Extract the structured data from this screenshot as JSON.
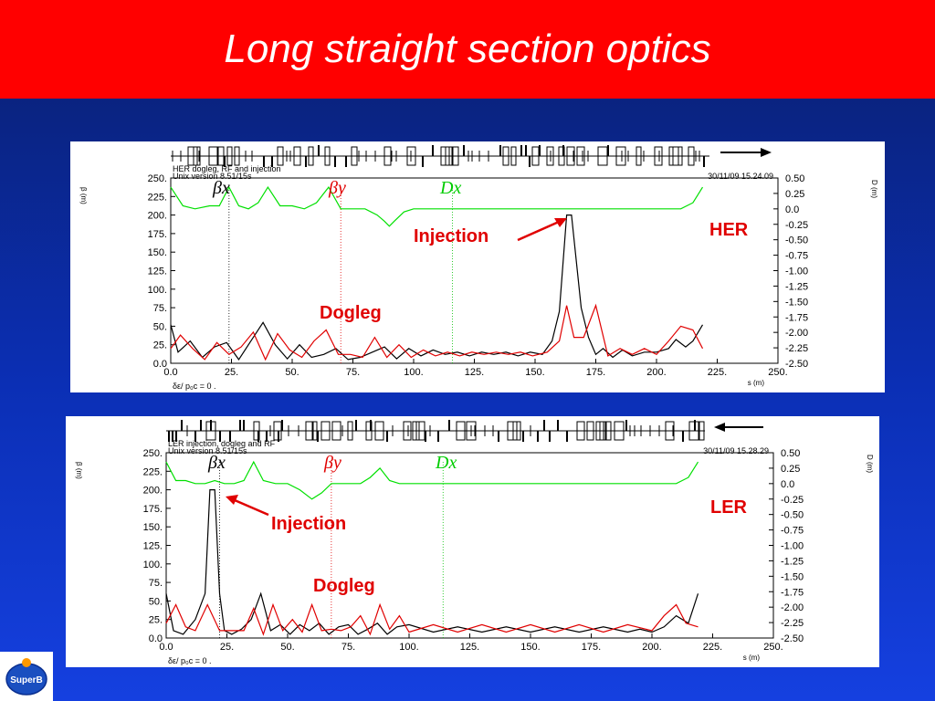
{
  "slide": {
    "title": "Long straight section optics",
    "logo_text": "SuperB",
    "background_color": "#1238d0",
    "title_bar_color": "#ff0000"
  },
  "chart_data": [
    {
      "type": "line",
      "ring": "HER",
      "header_line1": "HER dogleg, RF and injection",
      "header_line2": "Unix version 8.51/15s",
      "timestamp": "30/11/09  15.24.09",
      "footer": "δε/ p₀c  =   0 .",
      "xlabel": "s (m)",
      "ylabel_left": "β (m)",
      "ylabel_right": "D (m)",
      "xlim": [
        0,
        250
      ],
      "ylim_left": [
        0,
        250
      ],
      "ylim_right": [
        -2.5,
        0.5
      ],
      "x_ticks": [
        "0.0",
        "25.",
        "50.",
        "75.",
        "100.",
        "125.",
        "150.",
        "175.",
        "200.",
        "225.",
        "250."
      ],
      "y_ticks_left": [
        "250.",
        "225.",
        "200.",
        "175.",
        "150.",
        "125.",
        "100.",
        "75.",
        "50.",
        "25.",
        "0.0"
      ],
      "y_ticks_right": [
        "0.50",
        "0.25",
        "0.0",
        "-0.25",
        "-0.50",
        "-0.75",
        "-1.00",
        "-1.25",
        "-1.50",
        "-1.75",
        "-2.00",
        "-2.25",
        "-2.50"
      ],
      "legend": [
        "βx",
        "βy",
        "Dx"
      ],
      "direction": "right",
      "label_ring": "HER",
      "label_injection": "Injection",
      "label_dogleg": "Dogleg",
      "series": [
        {
          "name": "βx",
          "color": "#000000",
          "x": [
            0,
            3,
            8,
            13,
            18,
            23,
            28,
            33,
            38,
            43,
            48,
            53,
            58,
            63,
            68,
            73,
            78,
            83,
            88,
            93,
            98,
            103,
            108,
            113,
            118,
            123,
            128,
            133,
            138,
            143,
            148,
            153,
            157,
            160,
            163,
            165,
            169,
            172,
            175,
            178,
            182,
            186,
            190,
            195,
            200,
            205,
            208,
            212,
            215,
            219
          ],
          "y": [
            52,
            15,
            30,
            8,
            22,
            28,
            5,
            30,
            55,
            25,
            6,
            25,
            8,
            12,
            20,
            5,
            8,
            15,
            22,
            6,
            20,
            10,
            18,
            12,
            15,
            10,
            15,
            12,
            15,
            10,
            15,
            12,
            30,
            70,
            200,
            200,
            75,
            35,
            12,
            20,
            8,
            18,
            10,
            15,
            15,
            20,
            32,
            22,
            30,
            52
          ]
        },
        {
          "name": "βy",
          "color": "#e00000",
          "x": [
            0,
            4,
            9,
            14,
            19,
            24,
            29,
            34,
            39,
            44,
            49,
            54,
            59,
            64,
            69,
            74,
            79,
            84,
            89,
            94,
            99,
            104,
            109,
            114,
            119,
            124,
            129,
            134,
            139,
            144,
            149,
            155,
            160,
            163,
            166,
            170,
            175,
            180,
            185,
            190,
            195,
            200,
            205,
            210,
            215,
            219
          ],
          "y": [
            20,
            38,
            20,
            5,
            28,
            12,
            22,
            42,
            5,
            40,
            18,
            8,
            30,
            45,
            12,
            12,
            8,
            35,
            8,
            25,
            8,
            18,
            10,
            15,
            10,
            15,
            12,
            15,
            12,
            15,
            10,
            15,
            30,
            78,
            35,
            35,
            78,
            10,
            20,
            12,
            20,
            12,
            30,
            50,
            45,
            20
          ]
        },
        {
          "name": "Dx",
          "color": "#00e000",
          "x": [
            0,
            5,
            10,
            16,
            20,
            24,
            28,
            32,
            36,
            40,
            45,
            50,
            55,
            60,
            65,
            70,
            75,
            80,
            85,
            88,
            90,
            92,
            96,
            100,
            110,
            140,
            170,
            200,
            210,
            215,
            219
          ],
          "y": [
            0.35,
            0.05,
            0.0,
            0.05,
            0.05,
            0.35,
            0.05,
            0.0,
            0.1,
            0.35,
            0.05,
            0.05,
            0.0,
            0.1,
            0.35,
            0.0,
            0.0,
            0.0,
            -0.1,
            -0.2,
            -0.28,
            -0.2,
            -0.05,
            0.0,
            0.0,
            0.0,
            0.0,
            0.0,
            0.0,
            0.1,
            0.35
          ]
        }
      ]
    },
    {
      "type": "line",
      "ring": "LER",
      "header_line1": "LER injection, dogleg and RF",
      "header_line2": "Unix version 8.51/15s",
      "timestamp": "30/11/09  15.28.29",
      "footer": "δε/ p₀c  =   0 .",
      "xlabel": "s (m)",
      "ylabel_left": "β (m)",
      "ylabel_right": "D (m)",
      "xlim": [
        0,
        250
      ],
      "ylim_left": [
        0,
        250
      ],
      "ylim_right": [
        -2.5,
        0.5
      ],
      "x_ticks": [
        "0.0",
        "25.",
        "50.",
        "75.",
        "100.",
        "125.",
        "150.",
        "175.",
        "200.",
        "225.",
        "250."
      ],
      "y_ticks_left": [
        "250.",
        "225.",
        "200.",
        "175.",
        "150.",
        "125.",
        "100.",
        "75.",
        "50.",
        "25.",
        "0.0"
      ],
      "y_ticks_right": [
        "0.50",
        "0.25",
        "0.0",
        "-0.25",
        "-0.50",
        "-0.75",
        "-1.00",
        "-1.25",
        "-1.50",
        "-1.75",
        "-2.00",
        "-2.25",
        "-2.50"
      ],
      "legend": [
        "βx",
        "βy",
        "Dx"
      ],
      "direction": "left",
      "label_ring": "LER",
      "label_injection": "Injection",
      "label_dogleg": "Dogleg",
      "series": [
        {
          "name": "βx",
          "color": "#000000",
          "x": [
            0,
            3,
            7,
            12,
            16,
            18,
            20,
            22,
            24,
            27,
            31,
            35,
            39,
            43,
            47,
            51,
            55,
            59,
            63,
            67,
            71,
            75,
            79,
            83,
            87,
            91,
            95,
            100,
            110,
            120,
            130,
            140,
            150,
            160,
            170,
            180,
            190,
            195,
            200,
            205,
            210,
            215,
            219
          ],
          "y": [
            60,
            10,
            5,
            25,
            60,
            200,
            200,
            60,
            10,
            5,
            12,
            25,
            60,
            10,
            18,
            5,
            18,
            10,
            20,
            5,
            15,
            18,
            5,
            12,
            20,
            5,
            15,
            18,
            8,
            15,
            8,
            15,
            8,
            15,
            8,
            15,
            8,
            12,
            8,
            15,
            30,
            20,
            60
          ]
        },
        {
          "name": "βy",
          "color": "#e00000",
          "x": [
            0,
            4,
            8,
            12,
            17,
            22,
            27,
            32,
            36,
            40,
            44,
            48,
            52,
            56,
            60,
            64,
            68,
            72,
            76,
            80,
            84,
            88,
            92,
            96,
            100,
            110,
            120,
            130,
            140,
            150,
            160,
            170,
            180,
            190,
            200,
            205,
            210,
            214,
            219
          ],
          "y": [
            20,
            45,
            15,
            10,
            45,
            10,
            10,
            10,
            40,
            5,
            45,
            10,
            25,
            8,
            45,
            10,
            12,
            10,
            15,
            30,
            5,
            45,
            12,
            30,
            8,
            18,
            8,
            18,
            8,
            18,
            8,
            18,
            8,
            18,
            10,
            30,
            45,
            20,
            15
          ]
        },
        {
          "name": "Dx",
          "color": "#00e000",
          "x": [
            0,
            4,
            8,
            12,
            16,
            20,
            24,
            28,
            32,
            36,
            40,
            45,
            50,
            55,
            60,
            64,
            68,
            72,
            76,
            80,
            84,
            88,
            92,
            96,
            100,
            120,
            150,
            180,
            200,
            210,
            215,
            219
          ],
          "y": [
            0.35,
            0.05,
            0.05,
            0.0,
            0.0,
            0.05,
            0.0,
            0.0,
            0.05,
            0.35,
            0.05,
            0.0,
            0.0,
            -0.1,
            -0.25,
            -0.15,
            0.0,
            0.0,
            0.0,
            0.0,
            0.1,
            0.25,
            0.05,
            0.0,
            0.0,
            0.0,
            0.0,
            0.0,
            0.0,
            0.0,
            0.1,
            0.35
          ]
        }
      ]
    }
  ]
}
